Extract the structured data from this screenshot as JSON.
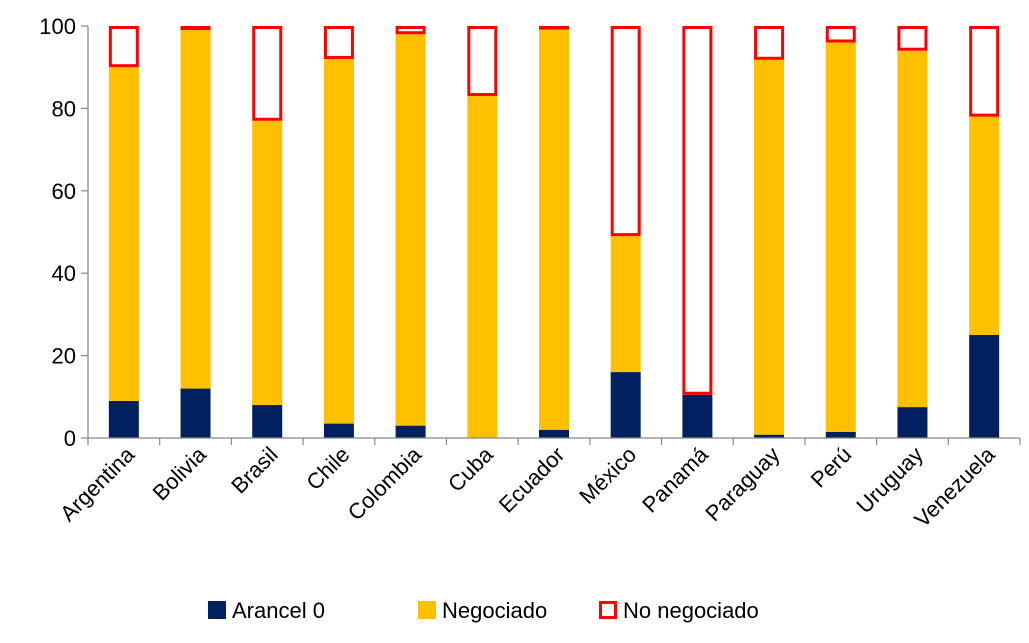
{
  "chart_data": {
    "type": "bar",
    "stacked": true,
    "title": "",
    "xlabel": "",
    "ylabel": "",
    "ylim": [
      0,
      100
    ],
    "yticks": [
      0,
      20,
      40,
      60,
      80,
      100
    ],
    "grid": false,
    "legend_position": "bottom",
    "categories": [
      "Argentina",
      "Bolivia",
      "Brasil",
      "Chile",
      "Colombia",
      "Cuba",
      "Ecuador",
      "México",
      "Panamá",
      "Paraguay",
      "Perú",
      "Uruguay",
      "Venezuela"
    ],
    "series": [
      {
        "name": "Arancel 0",
        "color": "#002060",
        "style": "filled",
        "values": [
          9,
          12,
          8,
          3.5,
          3,
          0,
          2,
          16,
          10.5,
          0.8,
          1.5,
          7.5,
          25
        ]
      },
      {
        "name": "Negociado",
        "color": "#FFC000",
        "style": "filled",
        "values": [
          81,
          87,
          69,
          88.5,
          95,
          83,
          97.5,
          33,
          0,
          91,
          94.5,
          86.5,
          53
        ]
      },
      {
        "name": "No negociado",
        "color": "#FF0000",
        "style": "outline",
        "values": [
          10,
          1,
          23,
          8,
          2,
          17,
          0.5,
          51,
          89.5,
          8.2,
          4,
          6,
          22
        ]
      }
    ]
  }
}
